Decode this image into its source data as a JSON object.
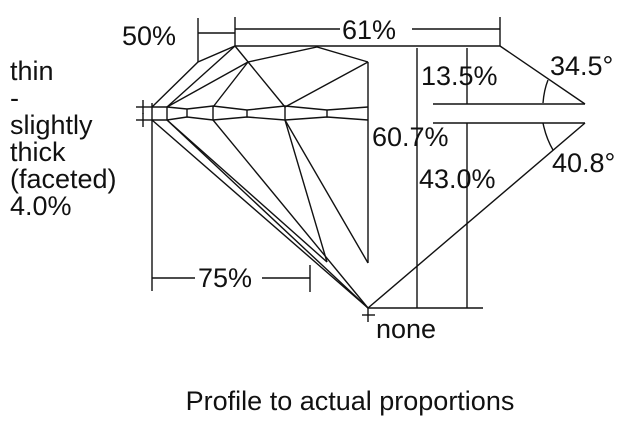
{
  "labels": {
    "table_width": "50%",
    "crown_width": "61%",
    "crown_height": "13.5%",
    "crown_angle": "34.5°",
    "total_depth": "60.7%",
    "pavilion_depth": "43.0%",
    "pavilion_angle": "40.8°",
    "lower_half": "75%",
    "culet": "none",
    "girdle": [
      "thin",
      "-",
      "slightly",
      "thick",
      "(faceted)",
      "4.0%"
    ]
  },
  "caption": "Profile to actual proportions"
}
